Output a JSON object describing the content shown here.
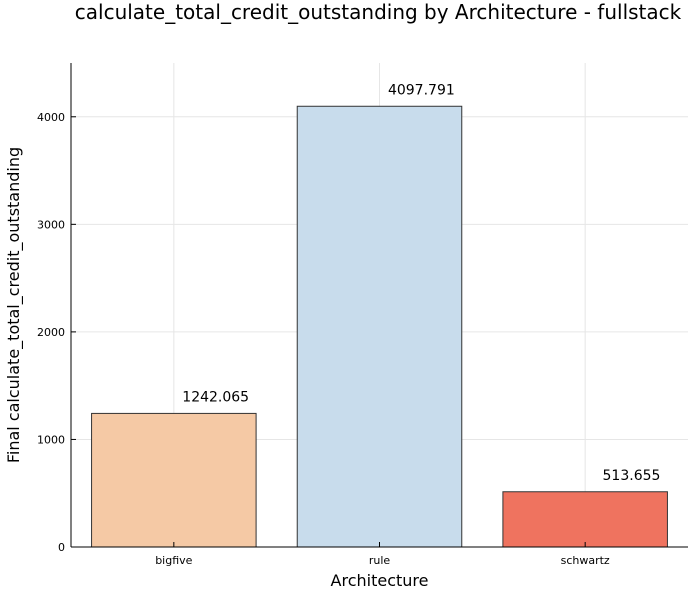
{
  "chart_data": {
    "type": "bar",
    "title": "calculate_total_credit_outstanding by Architecture - fullstack",
    "xlabel": "Architecture",
    "ylabel": "Final calculate_total_credit_outstanding",
    "categories": [
      "bigfive",
      "rule",
      "schwartz"
    ],
    "values": [
      1242.065,
      4097.791,
      513.655
    ],
    "value_labels": [
      "1242.065",
      "4097.791",
      "513.655"
    ],
    "colors": [
      "#f5c9a5",
      "#c8dcec",
      "#ef735f"
    ],
    "ylim": [
      0,
      4500
    ],
    "yticks": [
      0,
      1000,
      2000,
      3000,
      4000
    ],
    "grid": true,
    "legend": "none"
  }
}
